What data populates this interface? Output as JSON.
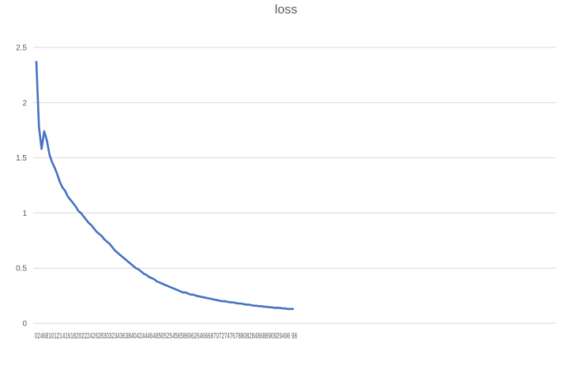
{
  "chart_data": {
    "type": "line",
    "title": "loss",
    "xlabel": "",
    "ylabel": "",
    "grid": true,
    "legend": "none",
    "ylim": [
      0,
      2.5
    ],
    "y_ticks": [
      "0",
      "0.5",
      "1",
      "1.5",
      "2",
      "2.5"
    ],
    "x_axis_label_text": "024681012141618202224262830323436384042444648505254565860626466687072747678808284868890929496 98",
    "x_ticks_visible": [
      "0",
      "2",
      "4",
      "6",
      "8",
      "10",
      "12",
      "14",
      "16",
      "18",
      "20",
      "22",
      "24",
      "26",
      "28",
      "30",
      "32",
      "34",
      "36",
      "38",
      "40",
      "42",
      "44",
      "46",
      "48",
      "50",
      "52",
      "54",
      "56",
      "58",
      "60",
      "62",
      "64",
      "66",
      "68",
      "70",
      "72",
      "74",
      "76",
      "78",
      "80",
      "82",
      "84",
      "86",
      "88",
      "90",
      "92",
      "94",
      "96",
      "98"
    ],
    "x_range": [
      0,
      99
    ],
    "series": [
      {
        "name": "loss",
        "color": "#4472c4",
        "x": [
          0,
          1,
          2,
          3,
          4,
          5,
          6,
          7,
          8,
          9,
          10,
          11,
          12,
          13,
          14,
          15,
          16,
          17,
          18,
          19,
          20,
          21,
          22,
          23,
          24,
          25,
          26,
          27,
          28,
          29,
          30,
          31,
          32,
          33,
          34,
          35,
          36,
          37,
          38,
          39,
          40,
          41,
          42,
          43,
          44,
          45,
          46,
          47,
          48,
          49,
          50,
          51,
          52,
          53,
          54,
          55,
          56,
          57,
          58,
          59,
          60,
          61,
          62,
          63,
          64,
          65,
          66,
          67,
          68,
          69,
          70,
          71,
          72,
          73,
          74,
          75,
          76,
          77,
          78,
          79,
          80,
          81,
          82,
          83,
          84,
          85,
          86,
          87,
          88,
          89,
          90,
          91,
          92,
          93,
          94,
          95,
          96,
          97,
          98
        ],
        "values": [
          2.37,
          1.78,
          1.58,
          1.74,
          1.66,
          1.53,
          1.46,
          1.41,
          1.35,
          1.28,
          1.23,
          1.2,
          1.15,
          1.12,
          1.09,
          1.06,
          1.02,
          1.0,
          0.97,
          0.94,
          0.91,
          0.89,
          0.86,
          0.83,
          0.81,
          0.79,
          0.76,
          0.74,
          0.72,
          0.69,
          0.66,
          0.64,
          0.62,
          0.6,
          0.58,
          0.56,
          0.54,
          0.52,
          0.5,
          0.49,
          0.47,
          0.45,
          0.44,
          0.42,
          0.41,
          0.4,
          0.38,
          0.37,
          0.36,
          0.35,
          0.34,
          0.33,
          0.32,
          0.31,
          0.3,
          0.29,
          0.28,
          0.28,
          0.27,
          0.26,
          0.26,
          0.25,
          0.245,
          0.24,
          0.235,
          0.23,
          0.225,
          0.22,
          0.215,
          0.21,
          0.205,
          0.2,
          0.2,
          0.195,
          0.19,
          0.19,
          0.185,
          0.18,
          0.18,
          0.175,
          0.17,
          0.17,
          0.165,
          0.16,
          0.16,
          0.155,
          0.155,
          0.15,
          0.15,
          0.145,
          0.145,
          0.14,
          0.14,
          0.14,
          0.135,
          0.135,
          0.13,
          0.13,
          0.13
        ]
      }
    ]
  }
}
